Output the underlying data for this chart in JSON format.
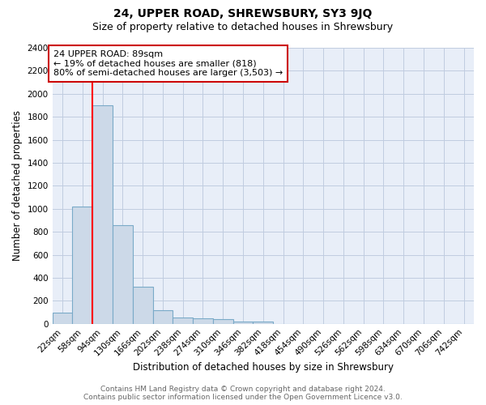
{
  "title": "24, UPPER ROAD, SHREWSBURY, SY3 9JQ",
  "subtitle": "Size of property relative to detached houses in Shrewsbury",
  "xlabel": "Distribution of detached houses by size in Shrewsbury",
  "ylabel": "Number of detached properties",
  "bar_labels": [
    "22sqm",
    "58sqm",
    "94sqm",
    "130sqm",
    "166sqm",
    "202sqm",
    "238sqm",
    "274sqm",
    "310sqm",
    "346sqm",
    "382sqm",
    "418sqm",
    "454sqm",
    "490sqm",
    "526sqm",
    "562sqm",
    "598sqm",
    "634sqm",
    "670sqm",
    "706sqm",
    "742sqm"
  ],
  "bar_values": [
    97,
    1020,
    1900,
    860,
    320,
    120,
    55,
    50,
    37,
    22,
    22,
    0,
    0,
    0,
    0,
    0,
    0,
    0,
    0,
    0,
    0
  ],
  "bar_color": "#ccd9e8",
  "bar_edge_color": "#7aaac8",
  "vline_color": "red",
  "annotation_text": "24 UPPER ROAD: 89sqm\n← 19% of detached houses are smaller (818)\n80% of semi-detached houses are larger (3,503) →",
  "annotation_box_color": "white",
  "annotation_box_edge": "#cc0000",
  "ylim": [
    0,
    2400
  ],
  "yticks": [
    0,
    200,
    400,
    600,
    800,
    1000,
    1200,
    1400,
    1600,
    1800,
    2000,
    2200,
    2400
  ],
  "background_color": "#e8eef8",
  "grid_color": "#c0cce0",
  "footer": "Contains HM Land Registry data © Crown copyright and database right 2024.\nContains public sector information licensed under the Open Government Licence v3.0.",
  "title_fontsize": 10,
  "subtitle_fontsize": 9,
  "xlabel_fontsize": 8.5,
  "ylabel_fontsize": 8.5,
  "tick_fontsize": 7.5,
  "annotation_fontsize": 8,
  "footer_fontsize": 6.5
}
